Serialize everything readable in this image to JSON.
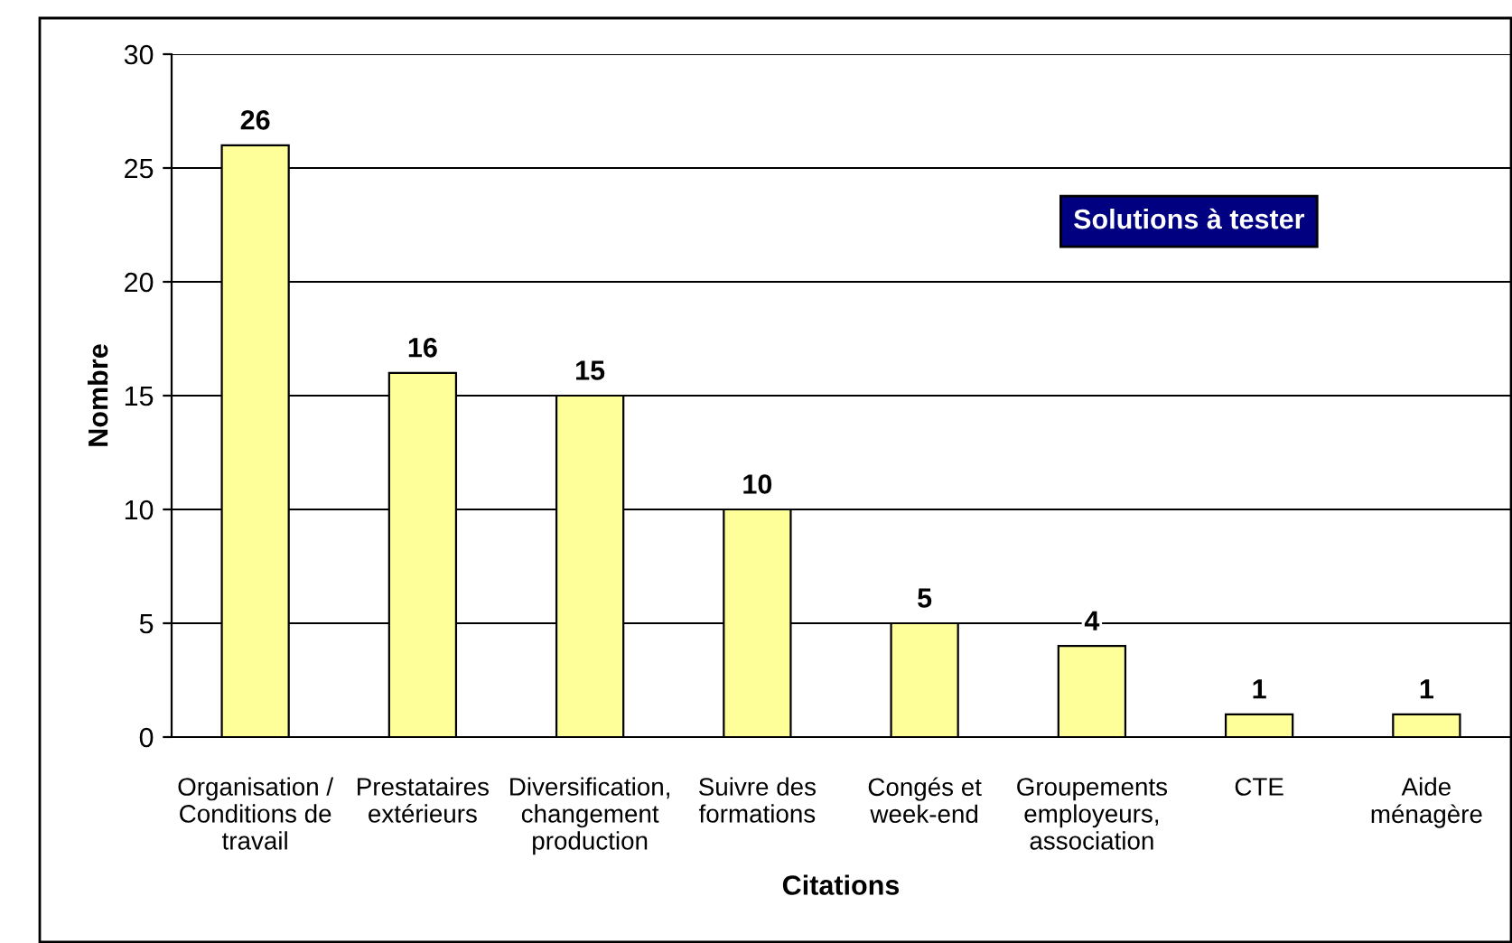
{
  "chart_data": {
    "type": "bar",
    "title": "Solutions à tester",
    "xlabel": "Citations",
    "ylabel": "Nombre",
    "categories": [
      "Organisation /\nConditions de\ntravail",
      "Prestataires\nextérieurs",
      "Diversification,\nchangement\nproduction",
      "Suivre des\nformations",
      "Congés et\nweek-end",
      "Groupements\nemployeurs,\nassociation",
      "CTE",
      "Aide\nménagère"
    ],
    "values": [
      26,
      16,
      15,
      10,
      5,
      4,
      1,
      1
    ],
    "color": "#ffff99",
    "ylim": [
      0,
      30
    ],
    "yticks": [
      0,
      5,
      10,
      15,
      20,
      25,
      30
    ],
    "grid": "y",
    "data_labels": true
  }
}
